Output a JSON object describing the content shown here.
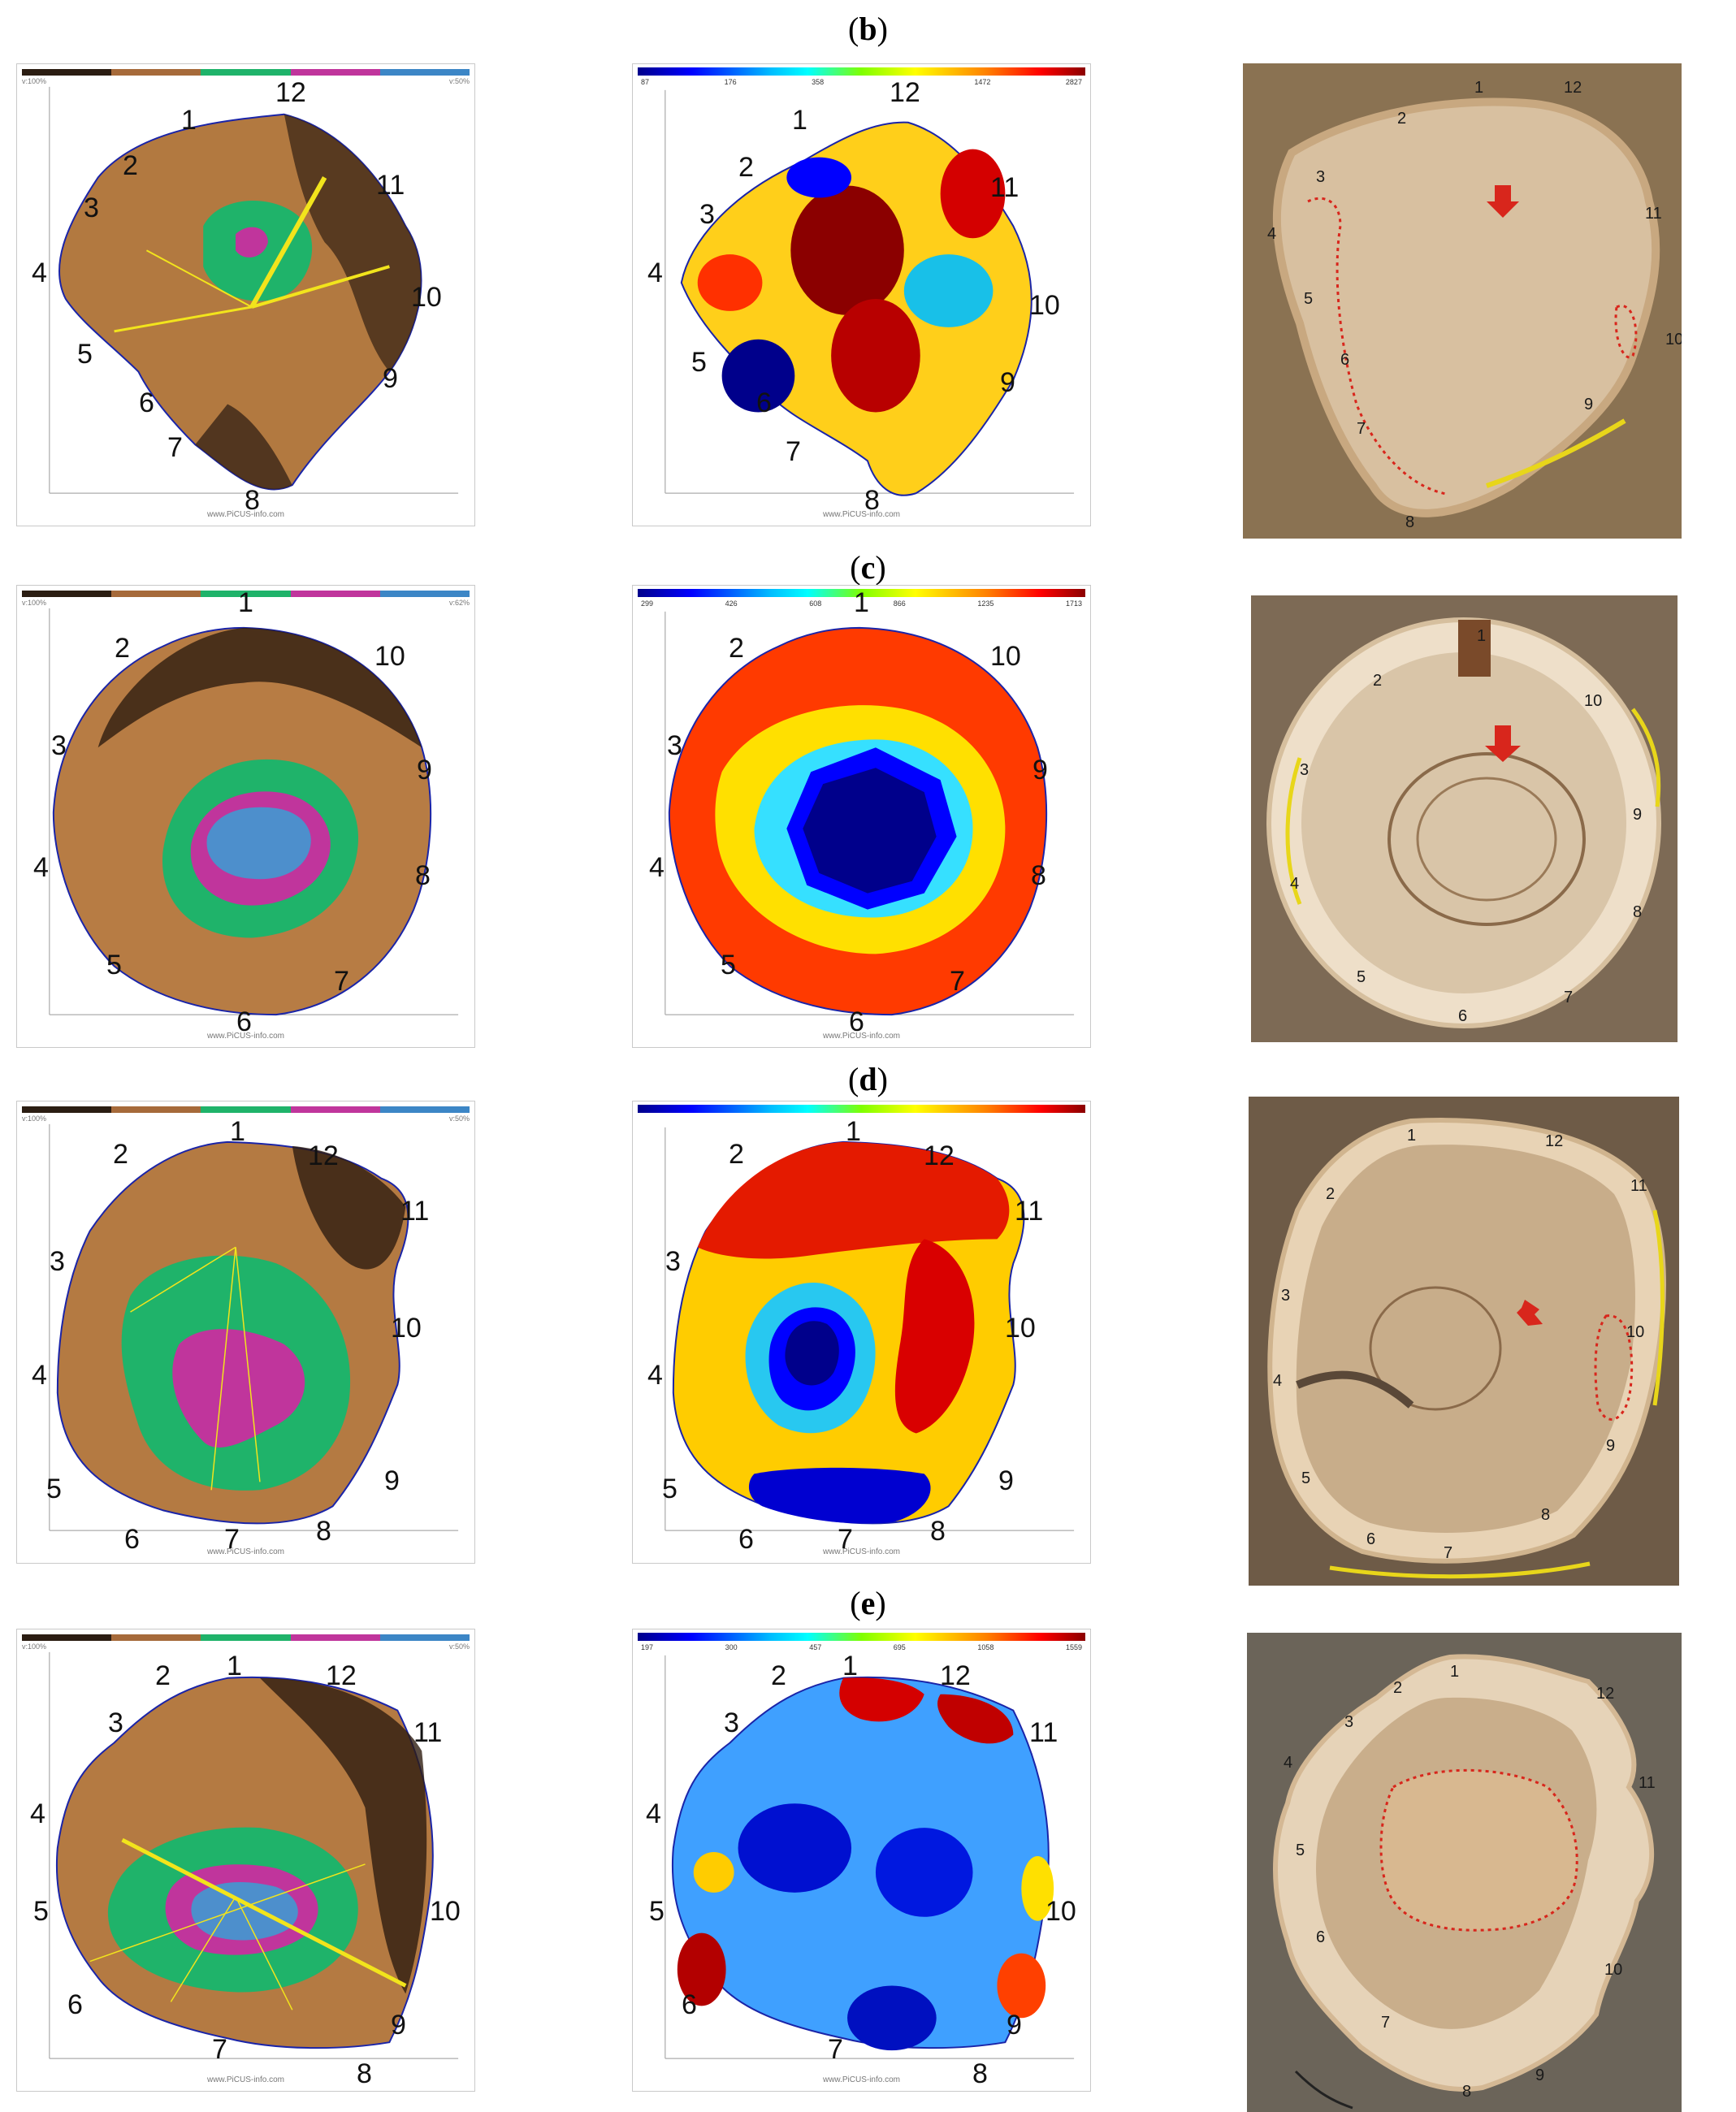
{
  "sections": [
    {
      "id": "b",
      "label": "b",
      "tomogram": {
        "v_left": "v:100%",
        "v_right": "v:50%",
        "points": [
          "1",
          "2",
          "3",
          "4",
          "5",
          "6",
          "7",
          "8",
          "9",
          "10",
          "11",
          "12"
        ]
      },
      "velocity": {
        "scale": [
          "87",
          "176",
          "358",
          "",
          "1472",
          "2827"
        ],
        "points": [
          "1",
          "2",
          "3",
          "4",
          "5",
          "6",
          "7",
          "8",
          "9",
          "10",
          "11",
          "12"
        ]
      },
      "photo": {
        "points": [
          "1",
          "2",
          "3",
          "4",
          "5",
          "6",
          "7",
          "8",
          "9",
          "10",
          "11",
          "12"
        ]
      }
    },
    {
      "id": "c",
      "label": "c",
      "tomogram": {
        "v_left": "v:100%",
        "v_right": "v:62%",
        "points": [
          "1",
          "2",
          "3",
          "4",
          "5",
          "6",
          "7",
          "8",
          "9",
          "10"
        ]
      },
      "velocity": {
        "scale": [
          "299",
          "426",
          "608",
          "866",
          "1235",
          "1713"
        ],
        "points": [
          "1",
          "2",
          "3",
          "4",
          "5",
          "6",
          "7",
          "8",
          "9",
          "10"
        ]
      },
      "photo": {
        "points": [
          "1",
          "2",
          "3",
          "4",
          "5",
          "6",
          "7",
          "8",
          "9",
          "10"
        ]
      }
    },
    {
      "id": "d",
      "label": "d",
      "tomogram": {
        "v_left": "v:100%",
        "v_right": "v:50%",
        "points": [
          "1",
          "2",
          "3",
          "4",
          "5",
          "6",
          "7",
          "8",
          "9",
          "10",
          "11",
          "12"
        ]
      },
      "velocity": {
        "scale": [
          "",
          "",
          "",
          "",
          "",
          ""
        ],
        "points": [
          "1",
          "2",
          "3",
          "4",
          "5",
          "6",
          "7",
          "8",
          "9",
          "10",
          "11",
          "12"
        ]
      },
      "photo": {
        "points": [
          "1",
          "2",
          "3",
          "4",
          "5",
          "6",
          "7",
          "8",
          "9",
          "10",
          "11",
          "12"
        ]
      }
    },
    {
      "id": "e",
      "label": "e",
      "tomogram": {
        "v_left": "v:100%",
        "v_right": "v:50%",
        "points": [
          "1",
          "2",
          "3",
          "4",
          "5",
          "6",
          "7",
          "8",
          "9",
          "10",
          "11",
          "12"
        ]
      },
      "velocity": {
        "scale": [
          "197",
          "300",
          "457",
          "695",
          "1058",
          "1559"
        ],
        "points": [
          "1",
          "2",
          "3",
          "4",
          "5",
          "6",
          "7",
          "8",
          "9",
          "10",
          "11",
          "12"
        ]
      },
      "photo": {
        "points": [
          "1",
          "2",
          "3",
          "4",
          "5",
          "6",
          "7",
          "8",
          "9",
          "10",
          "11",
          "12"
        ]
      }
    }
  ],
  "legend_colors": [
    "#2b1d12",
    "#a66a3a",
    "#1fb36a",
    "#c0359c",
    "#3c86c6"
  ],
  "credit": "www.PiCUS-info.com",
  "colors": {
    "outline": "#1a24a8",
    "guide": "#f2e41c",
    "decay_marker": "#d8261c",
    "tape": "#e8d61a"
  }
}
